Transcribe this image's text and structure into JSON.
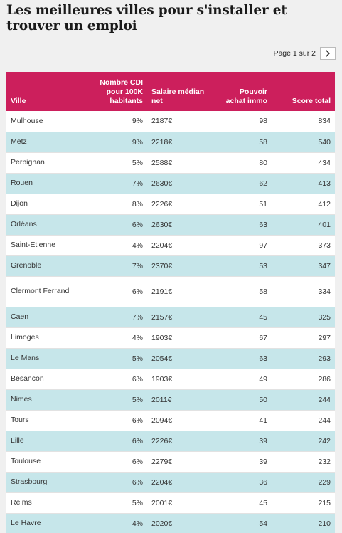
{
  "title": "Les meilleures villes pour s'installer et trouver un emploi",
  "pager": {
    "label": "Page 1 sur 2",
    "next_icon": "chevron-right-icon"
  },
  "colors": {
    "header_bg": "#cc1f5c",
    "row_alt": "#c6e6ea",
    "rule": "#1f3a3a"
  },
  "table": {
    "headers": {
      "ville": "Ville",
      "cdi": "Nombre CDI pour 100K habitants",
      "salaire": "Salaire médian net",
      "pouvoir": "Pouvoir achat immo",
      "score": "Score total"
    },
    "rows": [
      {
        "ville": "Mulhouse",
        "cdi": "9%",
        "salaire": "2187€",
        "pouvoir": "98",
        "score": "834"
      },
      {
        "ville": "Metz",
        "cdi": "9%",
        "salaire": "2218€",
        "pouvoir": "58",
        "score": "540"
      },
      {
        "ville": "Perpignan",
        "cdi": "5%",
        "salaire": "2588€",
        "pouvoir": "80",
        "score": "434"
      },
      {
        "ville": "Rouen",
        "cdi": "7%",
        "salaire": "2630€",
        "pouvoir": "62",
        "score": "413"
      },
      {
        "ville": "Dijon",
        "cdi": "8%",
        "salaire": "2226€",
        "pouvoir": "51",
        "score": "412"
      },
      {
        "ville": "Orléans",
        "cdi": "6%",
        "salaire": "2630€",
        "pouvoir": "63",
        "score": "401"
      },
      {
        "ville": "Saint-Etienne",
        "cdi": "4%",
        "salaire": "2204€",
        "pouvoir": "97",
        "score": "373"
      },
      {
        "ville": "Grenoble",
        "cdi": "7%",
        "salaire": "2370€",
        "pouvoir": "53",
        "score": "347"
      },
      {
        "ville": "Clermont Ferrand",
        "cdi": "6%",
        "salaire": "2191€",
        "pouvoir": "58",
        "score": "334"
      },
      {
        "ville": "Caen",
        "cdi": "7%",
        "salaire": "2157€",
        "pouvoir": "45",
        "score": "325"
      },
      {
        "ville": "Limoges",
        "cdi": "4%",
        "salaire": "1903€",
        "pouvoir": "67",
        "score": "297"
      },
      {
        "ville": "Le Mans",
        "cdi": "5%",
        "salaire": "2054€",
        "pouvoir": "63",
        "score": "293"
      },
      {
        "ville": "Besancon",
        "cdi": "6%",
        "salaire": "1903€",
        "pouvoir": "49",
        "score": "286"
      },
      {
        "ville": "Nimes",
        "cdi": "5%",
        "salaire": "2011€",
        "pouvoir": "50",
        "score": "244"
      },
      {
        "ville": "Tours",
        "cdi": "6%",
        "salaire": "2094€",
        "pouvoir": "41",
        "score": "244"
      },
      {
        "ville": "Lille",
        "cdi": "6%",
        "salaire": "2226€",
        "pouvoir": "39",
        "score": "242"
      },
      {
        "ville": "Toulouse",
        "cdi": "6%",
        "salaire": "2279€",
        "pouvoir": "39",
        "score": "232"
      },
      {
        "ville": "Strasbourg",
        "cdi": "6%",
        "salaire": "2204€",
        "pouvoir": "36",
        "score": "229"
      },
      {
        "ville": "Reims",
        "cdi": "5%",
        "salaire": "2001€",
        "pouvoir": "45",
        "score": "215"
      },
      {
        "ville": "Le Havre",
        "cdi": "4%",
        "salaire": "2020€",
        "pouvoir": "54",
        "score": "210"
      }
    ]
  }
}
